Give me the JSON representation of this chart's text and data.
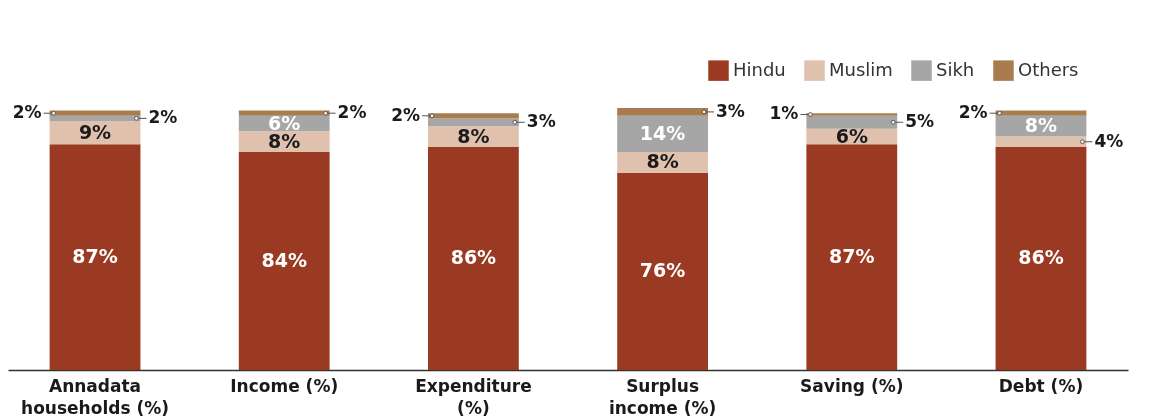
{
  "chart_data": {
    "type": "bar",
    "stacked": true,
    "legend": "top right",
    "categories": [
      "Annadata households (%)",
      "Income (%)",
      "Expenditure (%)",
      "Surplus income (%)",
      "Saving (%)",
      "Debt (%)"
    ],
    "series": [
      {
        "name": "Hindu",
        "color": "#9b3a22",
        "values": [
          87,
          84,
          86,
          76,
          87,
          86
        ],
        "value_labels": [
          "87%",
          "84%",
          "86%",
          "76%",
          "87%",
          "86%"
        ]
      },
      {
        "name": "Muslim",
        "color": "#dfc1ad",
        "values": [
          9,
          8,
          8,
          8,
          6,
          4
        ],
        "value_labels": [
          "9%",
          "8%",
          "8%",
          "8%",
          "6%",
          "4%"
        ]
      },
      {
        "name": "Sikh",
        "color": "#a6a6a6",
        "values": [
          2,
          6,
          3,
          14,
          5,
          8
        ],
        "value_labels": [
          "2%",
          "6%",
          "3%",
          "14%",
          "5%",
          "8%"
        ]
      },
      {
        "name": "Others",
        "color": "#a97c50",
        "values": [
          2,
          2,
          2,
          3,
          1,
          2
        ],
        "value_labels": [
          "2%",
          "2%",
          "2%",
          "3%",
          "1%",
          "2%"
        ]
      }
    ]
  }
}
